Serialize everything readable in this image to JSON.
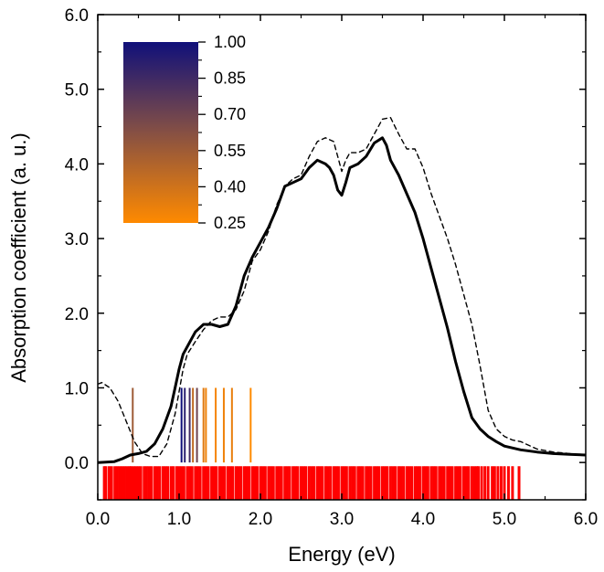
{
  "chart_data": {
    "type": "line",
    "title": "",
    "xlabel": "Energy (eV)",
    "ylabel": "Absorption coefficient (a. u.)",
    "xlim": [
      0.0,
      6.0
    ],
    "ylim": [
      -0.5,
      6.0
    ],
    "xticks": [
      "0.0",
      "1.0",
      "2.0",
      "3.0",
      "4.0",
      "5.0",
      "6.0"
    ],
    "xtick_values": [
      0,
      1,
      2,
      3,
      4,
      5,
      6
    ],
    "yticks": [
      "0.0",
      "1.0",
      "2.0",
      "3.0",
      "4.0",
      "5.0",
      "6.0"
    ],
    "ytick_values": [
      0,
      1,
      2,
      3,
      4,
      5,
      6
    ],
    "series": [
      {
        "name": "solid",
        "style": "solid",
        "color": "#000000",
        "x": [
          0.0,
          0.2,
          0.3,
          0.4,
          0.5,
          0.6,
          0.7,
          0.8,
          0.9,
          0.95,
          1.0,
          1.05,
          1.1,
          1.2,
          1.3,
          1.4,
          1.5,
          1.6,
          1.7,
          1.8,
          1.9,
          2.0,
          2.1,
          2.2,
          2.3,
          2.4,
          2.5,
          2.6,
          2.7,
          2.8,
          2.85,
          2.9,
          2.95,
          3.0,
          3.05,
          3.1,
          3.2,
          3.3,
          3.4,
          3.5,
          3.55,
          3.6,
          3.7,
          3.8,
          3.9,
          4.0,
          4.1,
          4.2,
          4.3,
          4.4,
          4.5,
          4.6,
          4.7,
          4.8,
          4.9,
          5.0,
          5.2,
          5.4,
          5.6,
          5.8,
          6.0
        ],
        "values": [
          0.0,
          0.01,
          0.05,
          0.1,
          0.12,
          0.15,
          0.25,
          0.45,
          0.75,
          1.0,
          1.25,
          1.45,
          1.55,
          1.75,
          1.85,
          1.85,
          1.82,
          1.85,
          2.1,
          2.5,
          2.75,
          2.95,
          3.15,
          3.4,
          3.7,
          3.75,
          3.8,
          3.95,
          4.05,
          4.0,
          3.95,
          3.85,
          3.65,
          3.58,
          3.75,
          3.95,
          4.0,
          4.1,
          4.28,
          4.35,
          4.25,
          4.05,
          3.85,
          3.6,
          3.35,
          3.0,
          2.6,
          2.2,
          1.8,
          1.35,
          0.95,
          0.6,
          0.45,
          0.35,
          0.28,
          0.22,
          0.17,
          0.14,
          0.12,
          0.11,
          0.1
        ]
      },
      {
        "name": "dashed",
        "style": "dashed",
        "color": "#000000",
        "x": [
          0.0,
          0.05,
          0.15,
          0.25,
          0.35,
          0.45,
          0.55,
          0.65,
          0.75,
          0.85,
          0.95,
          1.0,
          1.05,
          1.1,
          1.2,
          1.3,
          1.4,
          1.5,
          1.6,
          1.7,
          1.8,
          1.9,
          2.0,
          2.1,
          2.2,
          2.3,
          2.4,
          2.5,
          2.6,
          2.7,
          2.8,
          2.9,
          2.95,
          3.0,
          3.05,
          3.1,
          3.2,
          3.3,
          3.4,
          3.5,
          3.6,
          3.7,
          3.8,
          3.9,
          4.0,
          4.1,
          4.2,
          4.3,
          4.4,
          4.5,
          4.6,
          4.7,
          4.8,
          4.9,
          5.0,
          5.1,
          5.2,
          5.4,
          5.6,
          5.8,
          6.0
        ],
        "values": [
          1.05,
          1.07,
          1.0,
          0.82,
          0.55,
          0.28,
          0.12,
          0.08,
          0.08,
          0.25,
          0.65,
          0.95,
          1.25,
          1.45,
          1.62,
          1.78,
          1.9,
          1.95,
          1.95,
          2.05,
          2.3,
          2.7,
          2.85,
          3.1,
          3.45,
          3.7,
          3.8,
          3.85,
          4.1,
          4.3,
          4.35,
          4.3,
          4.1,
          3.9,
          4.05,
          4.15,
          4.15,
          4.2,
          4.4,
          4.6,
          4.62,
          4.4,
          4.2,
          4.2,
          3.95,
          3.6,
          3.3,
          3.0,
          2.65,
          2.25,
          1.85,
          1.3,
          0.7,
          0.45,
          0.35,
          0.3,
          0.28,
          0.18,
          0.14,
          0.12,
          0.1
        ]
      }
    ],
    "oscillator_lines": {
      "height": 1.0,
      "color_scale": "0.25 orange to 1.00 navy",
      "lines": [
        {
          "x": 0.43,
          "strength": 0.55
        },
        {
          "x": 1.03,
          "strength": 1.0
        },
        {
          "x": 1.07,
          "strength": 0.92
        },
        {
          "x": 1.13,
          "strength": 0.85
        },
        {
          "x": 1.17,
          "strength": 0.45
        },
        {
          "x": 1.22,
          "strength": 0.7
        },
        {
          "x": 1.3,
          "strength": 0.35
        },
        {
          "x": 1.33,
          "strength": 0.3
        },
        {
          "x": 1.45,
          "strength": 0.28
        },
        {
          "x": 1.55,
          "strength": 0.3
        },
        {
          "x": 1.65,
          "strength": 0.32
        },
        {
          "x": 1.88,
          "strength": 0.25
        }
      ]
    },
    "transition_rug": {
      "color": "#ff0000",
      "y_range": [
        -0.55,
        -0.05
      ],
      "x": [
        0.08,
        0.1,
        0.14,
        0.17,
        0.21,
        0.24,
        0.27,
        0.3,
        0.33,
        0.36,
        0.39,
        0.41,
        0.44,
        0.47,
        0.5,
        0.53,
        0.57,
        0.6,
        0.63,
        0.66,
        0.7,
        0.73,
        0.76,
        0.8,
        0.83,
        0.86,
        0.9,
        0.93,
        0.97,
        1.0,
        1.03,
        1.06,
        1.1,
        1.13,
        1.16,
        1.2,
        1.23,
        1.26,
        1.3,
        1.33,
        1.36,
        1.4,
        1.43,
        1.46,
        1.5,
        1.53,
        1.56,
        1.6,
        1.63,
        1.66,
        1.7,
        1.73,
        1.76,
        1.8,
        1.83,
        1.86,
        1.9,
        1.93,
        1.96,
        2.0,
        2.03,
        2.06,
        2.1,
        2.13,
        2.16,
        2.2,
        2.23,
        2.26,
        2.3,
        2.33,
        2.36,
        2.4,
        2.43,
        2.46,
        2.5,
        2.53,
        2.56,
        2.6,
        2.63,
        2.66,
        2.7,
        2.73,
        2.76,
        2.8,
        2.83,
        2.86,
        2.9,
        2.93,
        2.96,
        3.0,
        3.03,
        3.06,
        3.1,
        3.13,
        3.16,
        3.2,
        3.23,
        3.26,
        3.3,
        3.33,
        3.36,
        3.4,
        3.43,
        3.46,
        3.5,
        3.53,
        3.56,
        3.6,
        3.63,
        3.66,
        3.7,
        3.73,
        3.76,
        3.8,
        3.83,
        3.86,
        3.9,
        3.93,
        3.96,
        4.0,
        4.03,
        4.06,
        4.1,
        4.13,
        4.16,
        4.2,
        4.23,
        4.26,
        4.3,
        4.33,
        4.36,
        4.4,
        4.43,
        4.46,
        4.5,
        4.53,
        4.56,
        4.6,
        4.63,
        4.66,
        4.68,
        4.72,
        4.76,
        4.8,
        4.85,
        4.88,
        4.92,
        4.96,
        5.0,
        5.05,
        5.1,
        5.18
      ]
    },
    "colorbar": {
      "ticks": [
        "1.00",
        "0.85",
        "0.70",
        "0.55",
        "0.40",
        "0.25"
      ],
      "tick_values": [
        1.0,
        0.85,
        0.7,
        0.55,
        0.4,
        0.25
      ],
      "color_high": "#10107a",
      "color_mid": "#7a4a4a",
      "color_low": "#ff8a00"
    }
  }
}
